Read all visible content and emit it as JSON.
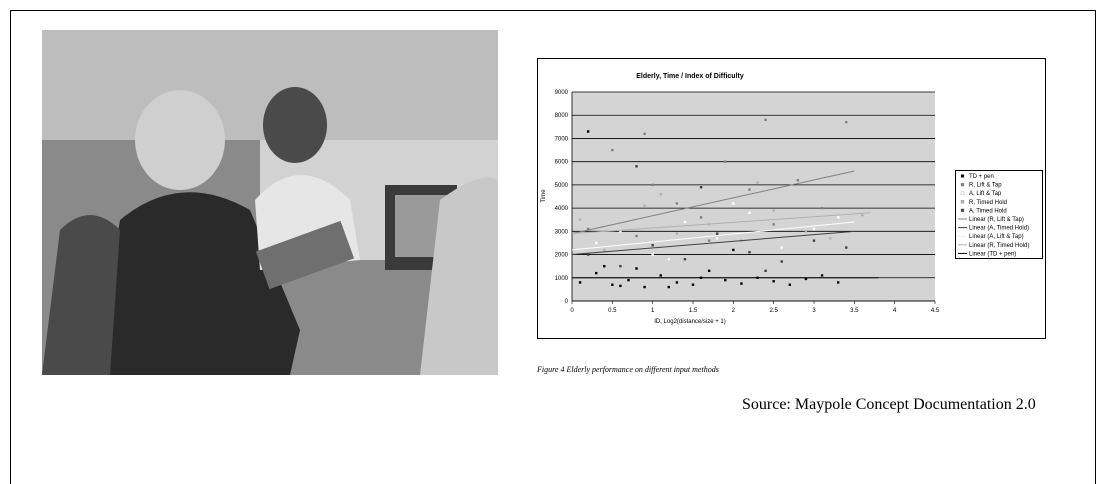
{
  "chart_data": {
    "type": "scatter",
    "title": "Elderly, Time / Index of Difficulty",
    "x_label": "ID, Log2(distance/size + 1)",
    "y_label": "Time",
    "xlim": [
      0,
      4.5
    ],
    "xticks": [
      0,
      0.5,
      1,
      1.5,
      2,
      2.5,
      3,
      3.5,
      4,
      4.5
    ],
    "ylim": [
      0,
      9000
    ],
    "yticks": [
      0,
      1000,
      2000,
      3000,
      4000,
      5000,
      6000,
      7000,
      8000,
      9000
    ],
    "grid": true,
    "series": [
      {
        "name": "TD + pen",
        "color": "#000000",
        "x": [
          0.1,
          0.3,
          0.5,
          0.7,
          0.9,
          1.1,
          1.3,
          1.5,
          1.7,
          1.9,
          2.1,
          2.3,
          2.5,
          2.7,
          2.9,
          3.1,
          3.3,
          0.4,
          0.8,
          1.2,
          1.6,
          2.0,
          0.2,
          0.6
        ],
        "values": [
          800,
          1200,
          700,
          900,
          600,
          1100,
          800,
          700,
          1300,
          900,
          750,
          1000,
          850,
          700,
          950,
          1100,
          800,
          1500,
          1400,
          600,
          1000,
          2200,
          7300,
          650
        ]
      },
      {
        "name": "R, Lift & Tap",
        "color": "#808080",
        "x": [
          0.2,
          0.5,
          0.8,
          1.0,
          1.3,
          1.6,
          1.9,
          2.2,
          2.5,
          2.8,
          3.1,
          3.4,
          0.9,
          1.7,
          2.4
        ],
        "values": [
          3100,
          6500,
          2800,
          5000,
          4200,
          3600,
          6000,
          4800,
          3300,
          5200,
          4000,
          7700,
          7200,
          2600,
          7800
        ]
      },
      {
        "name": "A, Lift & Tap",
        "color": "#ffffff",
        "x": [
          0.3,
          0.6,
          1.0,
          1.4,
          1.8,
          2.2,
          2.6,
          3.0,
          3.3,
          1.2,
          2.0
        ],
        "values": [
          2500,
          3000,
          2000,
          3400,
          2700,
          3800,
          2300,
          3100,
          3600,
          1800,
          4200
        ]
      },
      {
        "name": "R, Timed Hold",
        "color": "#b0b0b0",
        "x": [
          0.1,
          0.4,
          0.9,
          1.3,
          1.7,
          2.1,
          2.5,
          2.9,
          3.2,
          3.6,
          1.1,
          2.3
        ],
        "values": [
          3500,
          2200,
          4100,
          2900,
          3300,
          2600,
          3900,
          3000,
          2700,
          3700,
          4600,
          5100
        ]
      },
      {
        "name": "A, Timed Hold",
        "color": "#404040",
        "x": [
          0.2,
          0.6,
          1.0,
          1.4,
          1.8,
          2.2,
          2.6,
          3.0,
          3.4,
          0.8,
          1.6,
          2.4
        ],
        "values": [
          2000,
          1500,
          2400,
          1800,
          2900,
          2100,
          1700,
          2600,
          2300,
          5800,
          4900,
          1300
        ]
      }
    ],
    "trendlines": [
      {
        "name": "Linear (R, Lift & Tap)",
        "color": "#808080",
        "x": [
          0,
          3.5
        ],
        "values": [
          2900,
          5600
        ]
      },
      {
        "name": "Linear (A, Timed Hold)",
        "color": "#404040",
        "x": [
          0,
          3.5
        ],
        "values": [
          2000,
          3000
        ]
      },
      {
        "name": "Linear (A, Lift & Tap)",
        "color": "#ffffff",
        "x": [
          0,
          3.5
        ],
        "values": [
          2200,
          3400
        ]
      },
      {
        "name": "Linear (R, Timed Hold)",
        "color": "#b0b0b0",
        "x": [
          0,
          3.7
        ],
        "values": [
          2900,
          3800
        ]
      },
      {
        "name": "Linear (TD + pen)",
        "color": "#000000",
        "x": [
          0,
          3.8
        ],
        "values": [
          1000,
          1000
        ]
      }
    ]
  },
  "caption": "Figure 4 Elderly performance on different input methods",
  "source": "Source: Maypole Concept Documentation 2.0"
}
